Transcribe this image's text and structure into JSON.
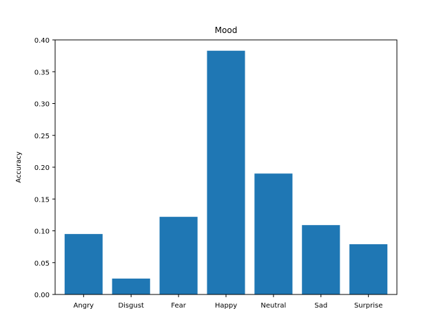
{
  "chart_data": {
    "type": "bar",
    "title": "Mood",
    "xlabel": "",
    "ylabel": "Accuracy",
    "categories": [
      "Angry",
      "Disgust",
      "Fear",
      "Happy",
      "Neutral",
      "Sad",
      "Surprise"
    ],
    "values": [
      0.095,
      0.025,
      0.122,
      0.383,
      0.19,
      0.109,
      0.079
    ],
    "ylim": [
      0.0,
      0.4
    ],
    "yticks": [
      "0.00",
      "0.05",
      "0.10",
      "0.15",
      "0.20",
      "0.25",
      "0.30",
      "0.35",
      "0.40"
    ],
    "grid": false,
    "legend": false,
    "bar_color": "#1f77b4"
  }
}
